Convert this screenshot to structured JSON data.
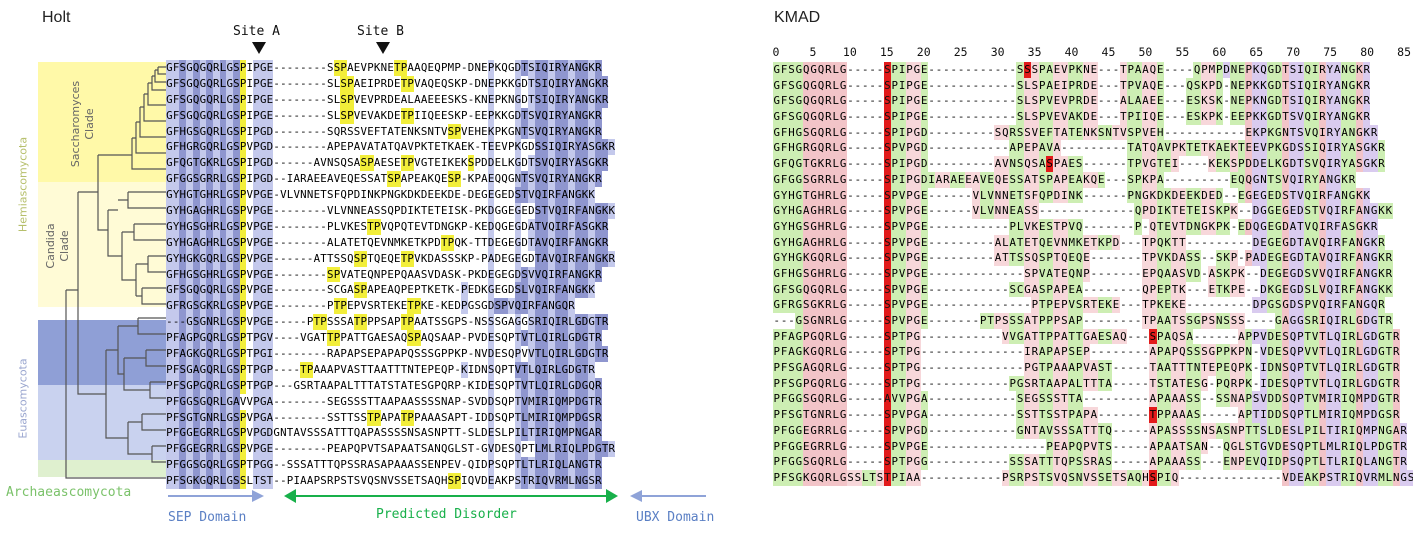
{
  "holt": {
    "title": "Holt",
    "site_a": "Site A",
    "site_b": "Site B",
    "clade_saccharomyces": "Saccharomyces\nClade",
    "clade_candida": "Candida\nClade",
    "hemiascomycota": "Hemiascomycota",
    "euascomycota": "Euascomycota",
    "archaeascomycota": "Archaeascomycota",
    "sep_domain": "SEP Domain",
    "predicted_disorder": "Predicted Disorder",
    "ubx_domain": "UBX Domain",
    "colors": {
      "saccharomyces_band": "#fff9a8",
      "candida_band": "#fffbd6",
      "eu_dark_band": "#8f9fd6",
      "eu_light_band": "#c9d2ef",
      "archaea_band": "#dff0cf",
      "blue_dark": "#8f96cf",
      "blue_light": "#c4c9ec",
      "yellow_sp": "#f2ee3a",
      "arrow_blue": "#8fa3d8",
      "arrow_green": "#18b04a",
      "label_green": "#7bc26a"
    },
    "sequences": [
      "GFSGQGQRLGSPIPGE--------SSPAEVPKNETPAAQEQPMP-DNEPKQGDTSIQIRYANGKR",
      "GFSGQGQRLGSPIPGE--------SLSPAEIPRDETPVAQEQSKP-DNEPKKGDTSIQIRYANGKR",
      "GFSGQGQRLGSPIPGE--------SLSPVEVPRDEALAAEEESKS-KNEPKNGDTSIQIRYANGKR",
      "GFSGQGQRLGSPIPGE--------SLSPVEVAKDETPIIQEESKP-EEPKKGDTSVQIRYANGKR",
      "GFHGSGQRLGSPIPGD--------SQRSSVEFTATENKSNTVSPVEHEKPKGNTSVQIRYANGKR",
      "GFHGRGQRLGSPVPGD--------APEPAVATATQAVPKTETKAEK-TEEVPKGDSSIQIRYASGKR",
      "GFQGTGKRLGSPIPGD------AVNSQSASPAESETPVGTEIKEKSPDDELKGDTSVQIRYASGKR",
      "GFGGSGRRLGSPIPGD--IARAEEAVEQESSATSPAPEAKQESP-KPAEQQGNTSVQIRYANGKR",
      "GYHGTGHRLGSPVPGE-VLVNNETSFQPDINKPNGKDKDEEKDE-DEGEGEDSTVQIRFANGKK",
      "GYHGAGHRLGSPVPGE--------VLVNNEASSQPDIKTETEISK-PKDGGEGEDSTVQIRFANGKK",
      "GYHGSGHRLGSPVPGE--------PLVKESTPVQPQTEVTDNGKP-KEDQGEGDATVQIRFASGKR",
      "GYHGAGHRLGSPVPGE--------ALATETQEVNMKETKPDTPQK-TTDEGEGDTAVQIRFANGKR",
      "GYHGKGQRLGSPVPGE------ATTSSQSPTQEQETPVKDASSSKP-PADEGEGDTAVQIRFANGKR",
      "GFHGSGHRLGSPVPGE--------SPVATEQNPEPQAASVDASK-PKDEGEGDSVVQIRFANGKR",
      "GFSGQGQRLGSPVPGE--------SCGASPAPEAQPEPTKETK-PEDKGEGDSLVQIRFANGKK",
      "GFRGSGKRLGSPVPGE--------PTPEPVSRTEKETPKE-KEDPGSGDSPVQIRFANGQR",
      "---GSGNRLGSPVPGE-----PTPSSSATPPPSAPTPAATSSGPS-NSSSGAGGSRIQIRLGDGTR",
      "PFAGPGQRLGSPTPGV----VGATTPPATTGAESAQSPAQSAAP-PVDESQPTVTLQIRLGDGTR",
      "PFAGKGQRLGSPTPGI--------RAPAPSEPAPAPQSSSGPPKP-NVDESQPVVTLQIRLGDGTR",
      "PFSGAGQRLGSPTPGP----TPAAAPVASTTAATTTNTEPEQP-KIDNSQPTVTLQIRLGDGTR",
      "PFSGPGQRLGSPTPGP---GSRTAAPALTTTATSTATESGPQRP-KIDESQPTVTLQIRLGDGQR",
      "PFGGSGQRLGAVVPGA--------SEGSSSTTAAPAASSSSNAP-SVDDSQPTVMIRIQMPDGTR",
      "PFSGTGNRLGSPVPGA--------SSTTSSTPAPATPPAAASAPT-IDDSQPTLMIRIQMPDGSR",
      "PFGGEGRRLGSPVPGDGNTAVSSSATTTQAPASSSSNSASNPTT-SLDESLPILTIRIQMPNGAR",
      "PFGGEGRRLGSPVPGE--------PEAPQPVTSAPAATSANQGLST-GVDESQPTLMLRIQLPDGTR",
      "PFGGSGQRLGSPTPGG--SSSATTTQPSSRASAPAAASSENPEV-QIDPSQPTLTLRIQLANGTR",
      "PFSGKGQRLGSSLTST--PIAAPSRPSTSVQSNVSSETSAQHSPIQVDEAKPSTRIQVRMLNGSR"
    ]
  },
  "kmad": {
    "title": "KMAD",
    "ruler_ticks": [
      "0",
      "5",
      "10",
      "15",
      "20",
      "25",
      "30",
      "35",
      "40",
      "45",
      "50",
      "55",
      "60",
      "65",
      "70",
      "75",
      "80",
      "85"
    ],
    "colors": {
      "red": "#e21b1b",
      "pink": "#f2c4c8",
      "green": "#cdeeb3",
      "lavender": "#d9cbef",
      "rose": "#f7d7da"
    },
    "sequences": [
      "GFSGQGQRLG-----SPIPGE------------S SPAEVPKNE---TPAAQE----QPMPDNEPKQGDTSIQIRYANGKR",
      "GFSGQGQRLG-----SPIPGE------------SLSPAEIPRDE---TPVAQE---QSKPD-NEPKKGDTSIQIRYANGKR",
      "GFSGQGQRLG-----SPIPGE------------SLSPVEVPRDE---ALAAEE---ESKSK-NEPKNGDTSIQIRYANGKR",
      "GFSGQGQRLG-----SPIPGE------------SLSPVEVAKDE---TPIIQE---ESKPK-EEPKKGDTSVQIRYANGKR",
      "GFHGSGQRLG-----SPIPGD---------SQRSSVEFTATENKSNTVSPVEH-----------EKPKGNTSVQIRYANGKR",
      "GFHGRGQRLG-----SPVPGD-----------APEPAVA---------TATQAVPKTETKAEKTEEVPKGDSSIQIRYASGKR",
      "GFQGTGKRLG-----SPIPGD---------AVNSQSASPAES------TPVGTEI----KEKSPDDELKGDTSVQIRYASGKR",
      "GFGGSGRRLG-----SPIPGDIARAEEAVEQESSATSPAPEAKQE---SPKPA---------EQQGNTSVQIRYANGKR",
      "GYHGTGHRLG-----SPVPGE------VLVNNETSFQPDINK------PNGKDKDEEKDED--EGEGEDSTVQIRFANGKK",
      "GYHGAGHRLG-----SPVPGE------VLVNNEASS-------------QPDIKTETEISKPK--DGGEGEDSTVQIRFANGKK",
      "GYHGSGHRLG-----SPVPGE-----------PLVKESTPVQ-------P-QTEVTDNGKPK-EDQGEGDATVQIRFASGKR",
      "GYHGAGHRLG-----SPVPGE---------ALATETQEVNMKETKPD---TPQKTT---------DEGEGDTAVQIRFANGKR",
      "GYHGKGQRLG-----SPVPGE---------ATTSSQSPTQEQE-------TPVKDASS--SKP-PADEGEGDTAVQIRFANGKR",
      "GFHGSGHRLG-----SPVPGE-------------SPVATEQNP-------EPQAASVD-ASKPK--DEGEGDSVVQIRFANGKR",
      "GFSGQGQRLG-----SPVPGE-----------SCGASPAPEA--------QPEPTK---ETKPE--DKGEGDSLVQIRFANGKK",
      "GFRGSGKRLG-----SPVPGE--------------PTPEPVSRTEKE---TPKEKE---------DPGSGDSPVQIRFANGQR",
      "---GSGNRLG-----SPVPGE-------PTPSSSATPPPSAP--------TPAATSSGPSNSSS----GAGGSRIQIRLGDGTR",
      "PFAGPGQRLG-----SPTPG-----------VVGATTPPATTGAESAQ---SPAQSA------APPVDESQPTVTLQIRLGDGTR",
      "PFAGKGQRLG-----SPTPG--------------IRAPAPSEP--------APAPQSSSGPPKPN-VDESQPVVTLQIRLGDGTR",
      "PFSGAGQRLG-----SPTPG--------------PGTPAAAPVAST-----TAATTTNTEPEQPK-IDNSQPTVTLQIRLGDGTR",
      "PFSGPGQRLG-----SPTPG------------PGSRTAAPALTTTA-----TSTATESG-PQRPK-IDESQPTVTLQIRLGDGTR",
      "PFGGSGQRLG-----AVVPGA------------SEGSSSTTA---------APAAASS--SSNAPSVDDSQPTVMIRIQMPDGTR",
      "PFSGTGNRLG-----SPVPGA------------SSTTSSTPAPA-------TPPAAAS-----APTIDDSQPTLMIRIQMPDGSR",
      "PFGGEGRRLG-----SPVPGD------------GNTAVSSSATTTQ-----APASSSSNSASNPTTSLDESLPILTIRIQMPNGAR",
      "PFGGEGRRLG-----SPVPGE----------------PEAPQPVTS-----APAATSAN--QGLSTGVDESQPTLMLRIQLPDGTR",
      "PFGGSGQRLG-----SPTPGG-----------SSSATTTQPSSRAS-----APAAASS---ENPEVQIDPSQPTLTLRIQLANGTR",
      "PFSGKGQRLGSSLTSTPIAA-----------PSRPSTSVQSNVSSETSAQHSPIQ--------------VDEAKPSTRIQVRMLNGSR"
    ]
  }
}
